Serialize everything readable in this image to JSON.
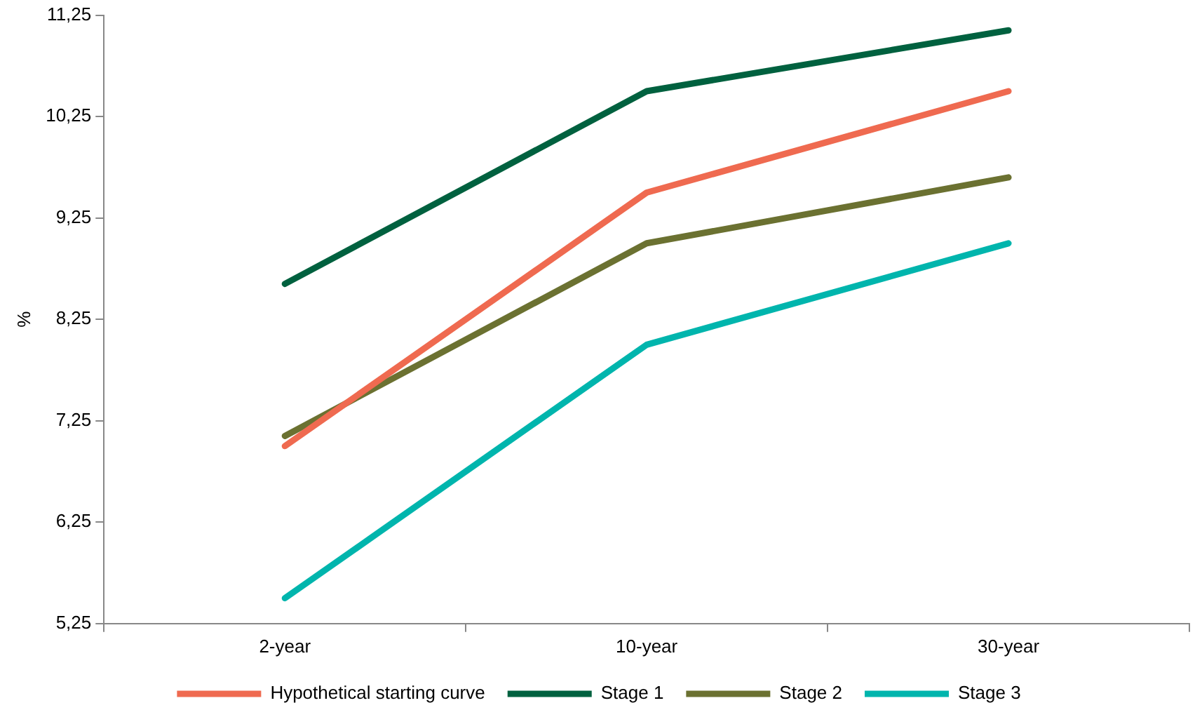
{
  "chart_data": {
    "type": "line",
    "ylabel": "%",
    "categories": [
      "2-year",
      "10-year",
      "30-year"
    ],
    "series": [
      {
        "name": "Hypothetical starting curve",
        "color": "#ef6a50",
        "values": [
          7.0,
          9.5,
          10.5
        ]
      },
      {
        "name": "Stage 1",
        "color": "#00613f",
        "values": [
          8.6,
          10.5,
          11.1
        ]
      },
      {
        "name": "Stage 2",
        "color": "#6b7131",
        "values": [
          7.1,
          9.0,
          9.65
        ]
      },
      {
        "name": "Stage 3",
        "color": "#00b5ad",
        "values": [
          5.5,
          8.0,
          9.0
        ]
      }
    ],
    "ylim": [
      5.25,
      11.25
    ],
    "yticks": [
      {
        "value": 5.25,
        "label": "5,25"
      },
      {
        "value": 6.25,
        "label": "6,25"
      },
      {
        "value": 7.25,
        "label": "7,25"
      },
      {
        "value": 8.25,
        "label": "8,25"
      },
      {
        "value": 9.25,
        "label": "9,25"
      },
      {
        "value": 10.25,
        "label": "10,25"
      },
      {
        "value": 11.25,
        "label": "11,25"
      }
    ],
    "grid": false,
    "legend": "bottom",
    "marker": "none",
    "line_style": "solid"
  }
}
